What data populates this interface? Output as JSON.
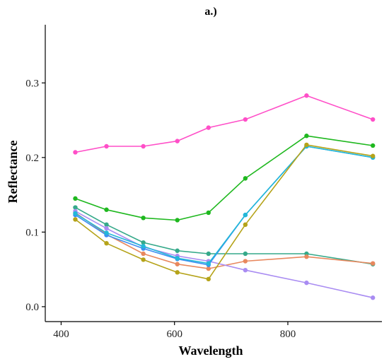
{
  "chart_data": {
    "type": "line",
    "title": "a.)",
    "xlabel": "Wavelength",
    "ylabel": "Reflectance",
    "xlim": [
      372,
      966
    ],
    "ylim": [
      -0.02,
      0.378
    ],
    "x_ticks": [
      400,
      600,
      800
    ],
    "y_ticks": [
      0.0,
      0.1,
      0.2,
      0.3
    ],
    "x_tick_labels": [
      "400",
      "600",
      "800"
    ],
    "y_tick_labels": [
      "0.0",
      "0.1",
      "0.2",
      "0.3"
    ],
    "grid": false,
    "legend": "none",
    "x": [
      425,
      480,
      545,
      605,
      660,
      725,
      833,
      950
    ],
    "series": [
      {
        "color": "#ff4fc8",
        "values": [
          0.207,
          0.215,
          0.215,
          0.222,
          0.24,
          0.251,
          0.283,
          0.251
        ]
      },
      {
        "color": "#1fb81f",
        "values": [
          0.145,
          0.13,
          0.119,
          0.116,
          0.126,
          0.172,
          0.229,
          0.216
        ]
      },
      {
        "color": "#35a98a",
        "values": [
          0.133,
          0.11,
          0.086,
          0.075,
          0.071,
          0.071,
          0.071,
          0.057
        ]
      },
      {
        "color": "#e8885e",
        "values": [
          0.126,
          0.097,
          0.071,
          0.057,
          0.051,
          0.061,
          0.067,
          0.058
        ]
      },
      {
        "color": "#a98cf2",
        "values": [
          0.128,
          0.105,
          0.08,
          0.068,
          0.061,
          0.049,
          0.032,
          0.012
        ]
      },
      {
        "color": "#3d8ef2",
        "values": [
          0.123,
          0.096,
          0.078,
          0.064,
          0.056,
          0.123,
          0.215,
          0.2
        ]
      },
      {
        "color": "#22b8d8",
        "values": [
          0.125,
          0.099,
          0.081,
          0.065,
          0.058,
          0.123,
          0.215,
          0.2
        ]
      },
      {
        "color": "#b5a319",
        "values": [
          0.117,
          0.085,
          0.063,
          0.046,
          0.037,
          0.11,
          0.217,
          0.202
        ]
      }
    ]
  }
}
